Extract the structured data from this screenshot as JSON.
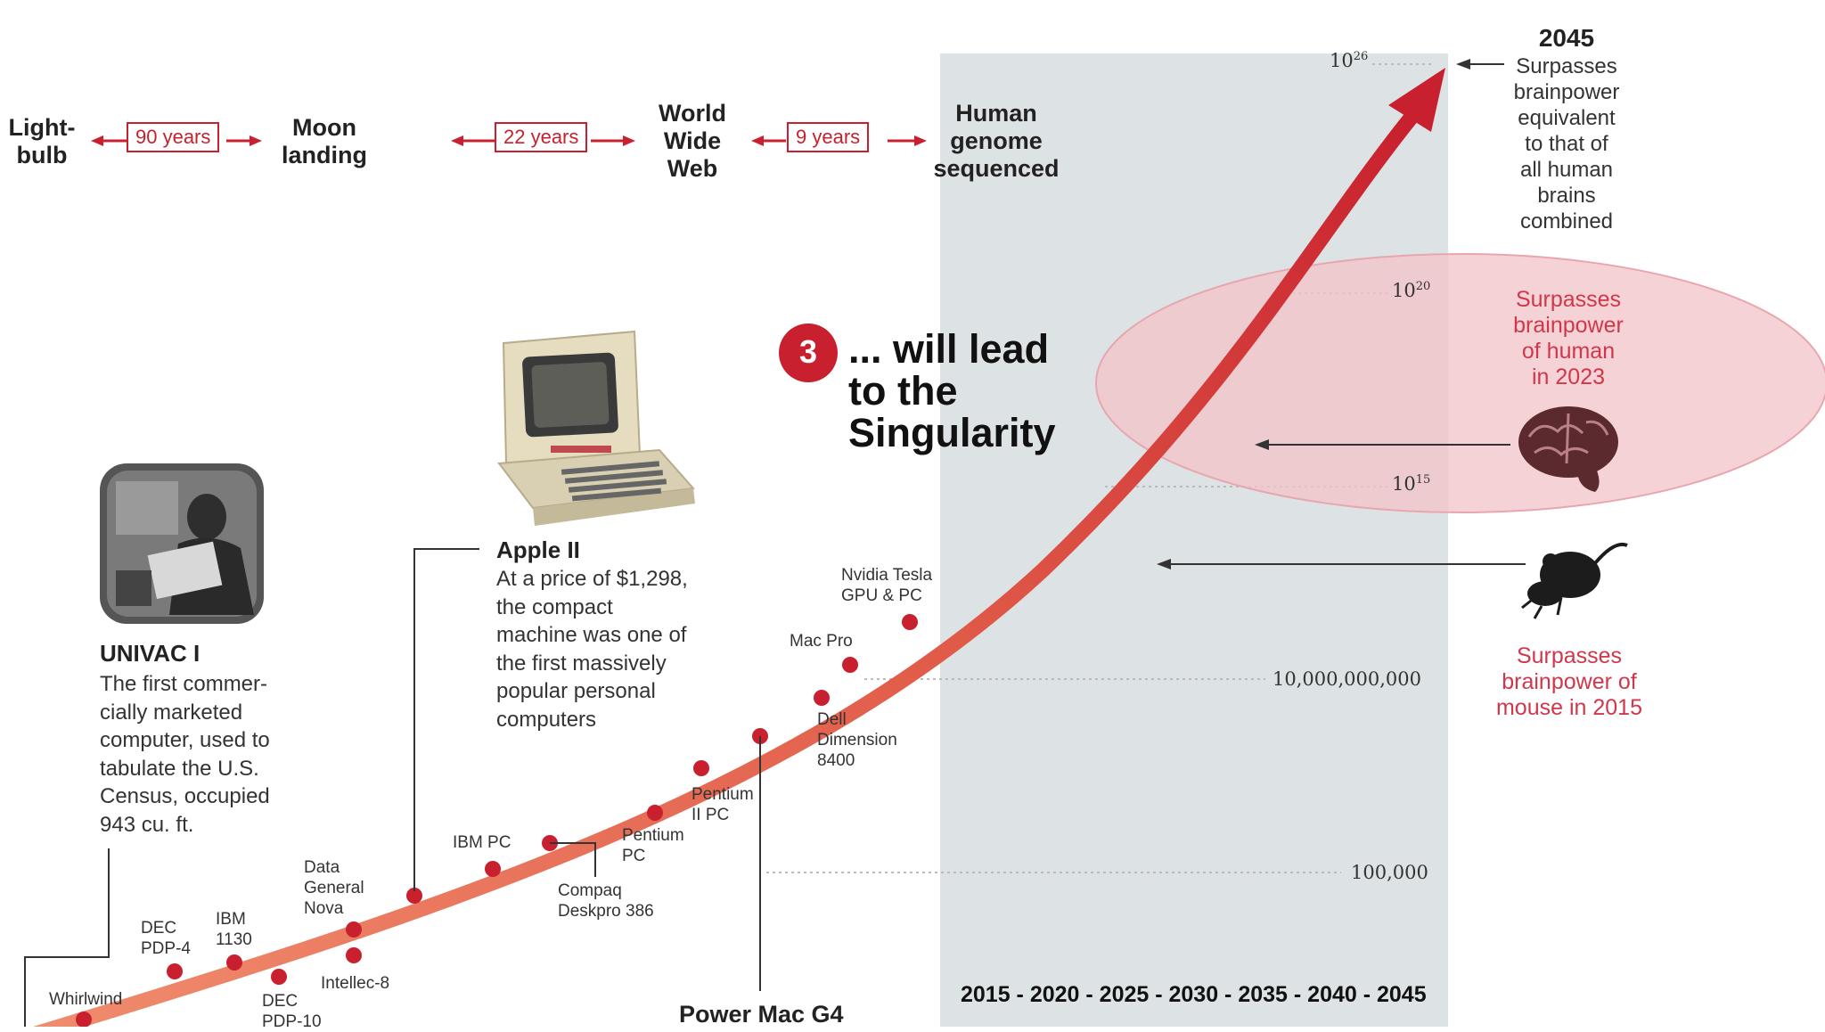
{
  "milestones": [
    {
      "label": "Light-\nbulb"
    },
    {
      "label": "Moon\nlanding"
    },
    {
      "label": "World\nWide\nWeb"
    },
    {
      "label": "Human\ngenome\nsequenced"
    }
  ],
  "intervals": [
    "90 years",
    "22 years",
    "9 years"
  ],
  "top": {
    "year": "2045",
    "note": "Surpasses\nbrainpower\nequivalent\nto that of\nall human\nbrains\ncombined",
    "exp26_base": "10",
    "exp26_sup": "26"
  },
  "axis_labels": {
    "e20_base": "10",
    "e20_sup": "20",
    "e15_base": "10",
    "e15_sup": "15",
    "ten_billion": "10,000,000,000",
    "hundred_thousand": "100,000"
  },
  "human": {
    "note": "Surpasses\nbrainpower\nof human\nin 2023"
  },
  "mouse": {
    "note": "Surpasses\nbrainpower of\nmouse in 2015"
  },
  "callout": {
    "number": "3",
    "text": "... will lead\nto the\nSingularity"
  },
  "apple": {
    "title": "Apple II",
    "desc": "At a price of $1,298,\nthe compact\nmachine was one of\nthe first massively\npopular personal\ncomputers"
  },
  "univac": {
    "title": "UNIVAC I",
    "desc": "The first commer-\ncially marketed\ncomputer, used to\ntabulate the U.S.\nCensus, occupied\n943 cu. ft."
  },
  "points": [
    {
      "label": "Whirlwind"
    },
    {
      "label": "DEC\nPDP-4"
    },
    {
      "label": "IBM\n1130"
    },
    {
      "label": "DEC\nPDP-10"
    },
    {
      "label": "Data\nGeneral\nNova"
    },
    {
      "label": "Intellec-8"
    },
    {
      "label": "IBM PC"
    },
    {
      "label": "Compaq\nDeskpro 386"
    },
    {
      "label": "Pentium\nPC"
    },
    {
      "label": "Pentium\nII PC"
    },
    {
      "label": "Dell\nDimension\n8400"
    },
    {
      "label": "Mac Pro"
    },
    {
      "label": "Nvidia Tesla\nGPU & PC"
    }
  ],
  "power_mac": "Power Mac G4",
  "year_axis": "2015 - 2020 - 2025 - 2030 - 2035 - 2040 - 2045",
  "colors": {
    "accent": "#c8202e",
    "band": "#dde2e4",
    "oval": "#f2c3c8"
  }
}
